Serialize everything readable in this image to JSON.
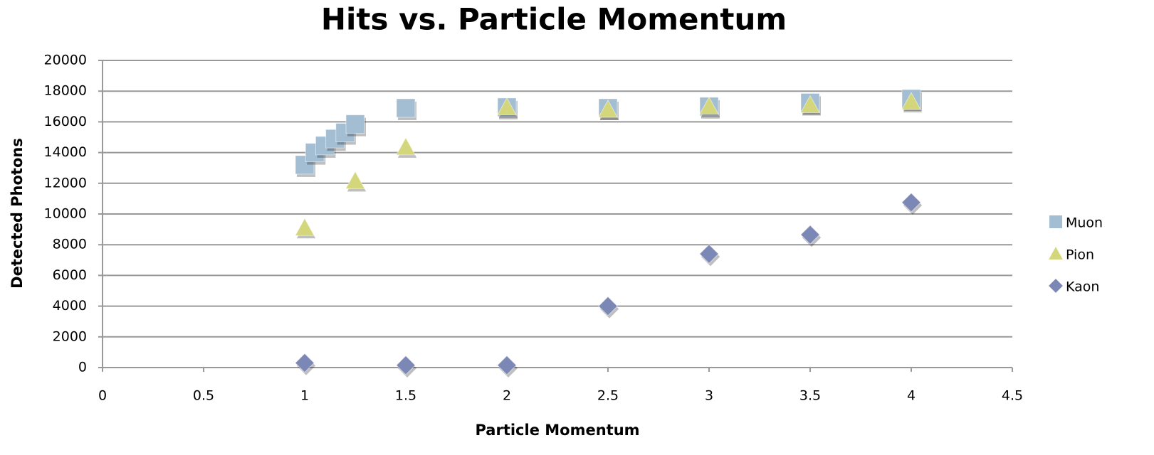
{
  "chart_data": {
    "type": "scatter",
    "title": "Hits vs. Particle Momentum",
    "x_label": "Particle Momentum",
    "y_label": "Detected Photons",
    "xlim": [
      0,
      4.5
    ],
    "xticks": [
      0,
      0.5,
      1,
      1.5,
      2,
      2.5,
      3,
      3.5,
      4,
      4.5
    ],
    "ylim": [
      0,
      20000
    ],
    "yticks": [
      0,
      2000,
      4000,
      6000,
      8000,
      10000,
      12000,
      14000,
      16000,
      18000,
      20000
    ],
    "grid": true,
    "legend": "right",
    "series": [
      {
        "name": "Muon",
        "color": "#a3bdd3",
        "marker": "square",
        "x": [
          1,
          1.05,
          1.1,
          1.15,
          1.2,
          1.25,
          1.5,
          2,
          2.5,
          3,
          3.5,
          4
        ],
        "values": [
          13200,
          14000,
          14450,
          14900,
          15300,
          15850,
          16900,
          16950,
          16900,
          17000,
          17250,
          17500
        ]
      },
      {
        "name": "Pion",
        "color": "#d3d67a",
        "marker": "triangle",
        "x": [
          1,
          1.25,
          1.5,
          2,
          2.5,
          3,
          3.5,
          4
        ],
        "values": [
          9100,
          12150,
          14350,
          16950,
          16800,
          17000,
          17100,
          17300
        ]
      },
      {
        "name": "Kaon",
        "color": "#7b87b4",
        "marker": "diamond",
        "x": [
          1,
          1.5,
          2,
          2.5,
          3,
          3.5,
          4
        ],
        "values": [
          300,
          150,
          150,
          4000,
          7400,
          8650,
          10750
        ]
      }
    ]
  }
}
